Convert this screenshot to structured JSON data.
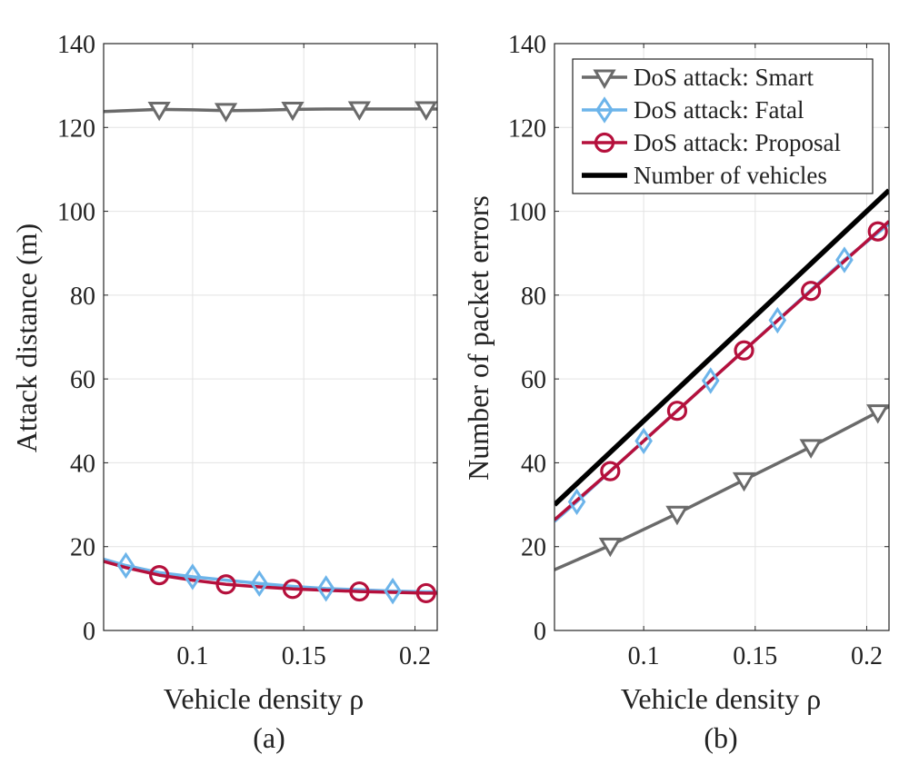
{
  "chart_data": [
    {
      "type": "line",
      "panel_label": "(a)",
      "xlabel": "Vehicle density ρ",
      "ylabel": "Attack distance (m)",
      "xlim": [
        0.06,
        0.21
      ],
      "ylim": [
        0,
        140
      ],
      "xticks": [
        "0.1",
        "0.15",
        "0.2"
      ],
      "xtick_values": [
        0.1,
        0.15,
        0.2
      ],
      "yticks": [
        "0",
        "20",
        "40",
        "60",
        "80",
        "100",
        "120",
        "140"
      ],
      "ytick_values": [
        0,
        20,
        40,
        60,
        80,
        100,
        120,
        140
      ],
      "grid": true,
      "series": [
        {
          "key": "smart",
          "color": "#6a6a6a",
          "marker": "triangle-down",
          "x": [
            0.06,
            0.085,
            0.1,
            0.115,
            0.13,
            0.145,
            0.16,
            0.175,
            0.19,
            0.21
          ],
          "y": [
            123.8,
            124.3,
            124.2,
            124.0,
            124.1,
            124.3,
            124.4,
            124.4,
            124.4,
            124.4
          ],
          "marker_x": [
            0.085,
            0.115,
            0.145,
            0.175,
            0.205
          ],
          "marker_y": [
            124.3,
            124.0,
            124.3,
            124.4,
            124.4
          ]
        },
        {
          "key": "fatal",
          "color": "#6cb4ea",
          "marker": "diamond",
          "x": [
            0.06,
            0.07,
            0.085,
            0.1,
            0.115,
            0.13,
            0.145,
            0.16,
            0.175,
            0.19,
            0.205,
            0.21
          ],
          "y": [
            17.0,
            15.5,
            13.8,
            12.8,
            12.0,
            11.2,
            10.5,
            10.0,
            9.7,
            9.4,
            9.2,
            9.2
          ],
          "marker_x": [
            0.07,
            0.1,
            0.13,
            0.16,
            0.19
          ],
          "marker_y": [
            15.5,
            12.8,
            11.2,
            10.0,
            9.4
          ]
        },
        {
          "key": "proposal",
          "color": "#b5103c",
          "marker": "circle",
          "x": [
            0.06,
            0.07,
            0.085,
            0.1,
            0.115,
            0.13,
            0.145,
            0.16,
            0.175,
            0.19,
            0.205,
            0.21
          ],
          "y": [
            16.5,
            15.0,
            13.2,
            12.0,
            11.0,
            10.4,
            9.9,
            9.6,
            9.3,
            9.1,
            8.9,
            8.9
          ],
          "marker_x": [
            0.085,
            0.115,
            0.145,
            0.175,
            0.205
          ],
          "marker_y": [
            13.2,
            11.0,
            9.9,
            9.3,
            8.9
          ]
        }
      ]
    },
    {
      "type": "line",
      "panel_label": "(b)",
      "xlabel": "Vehicle density ρ",
      "ylabel": "Number of packet errors",
      "xlim": [
        0.06,
        0.21
      ],
      "ylim": [
        0,
        140
      ],
      "xticks": [
        "0.1",
        "0.15",
        "0.2"
      ],
      "xtick_values": [
        0.1,
        0.15,
        0.2
      ],
      "yticks": [
        "0",
        "20",
        "40",
        "60",
        "80",
        "100",
        "120",
        "140"
      ],
      "ytick_values": [
        0,
        20,
        40,
        60,
        80,
        100,
        120,
        140
      ],
      "grid": true,
      "legend_position": "top-right",
      "series": [
        {
          "key": "smart",
          "name": "DoS attack: Smart",
          "color": "#6a6a6a",
          "marker": "triangle-down",
          "x": [
            0.06,
            0.085,
            0.115,
            0.145,
            0.175,
            0.205,
            0.21
          ],
          "y": [
            14.5,
            20.3,
            27.9,
            35.9,
            43.8,
            52.1,
            53.4
          ],
          "marker_x": [
            0.085,
            0.115,
            0.145,
            0.175,
            0.205
          ],
          "marker_y": [
            20.3,
            27.9,
            35.9,
            43.8,
            52.1
          ]
        },
        {
          "key": "fatal",
          "name": "DoS attack: Fatal",
          "color": "#6cb4ea",
          "marker": "diamond",
          "x": [
            0.06,
            0.07,
            0.1,
            0.13,
            0.16,
            0.19,
            0.21
          ],
          "y": [
            26.0,
            30.7,
            45.2,
            59.6,
            74.0,
            88.4,
            97.0
          ],
          "marker_x": [
            0.07,
            0.1,
            0.13,
            0.16,
            0.19
          ],
          "marker_y": [
            30.7,
            45.2,
            59.6,
            74.0,
            88.4
          ]
        },
        {
          "key": "proposal",
          "name": "DoS attack: Proposal",
          "color": "#b5103c",
          "marker": "circle",
          "x": [
            0.06,
            0.085,
            0.115,
            0.145,
            0.175,
            0.205,
            0.21
          ],
          "y": [
            26.4,
            38.0,
            52.4,
            66.8,
            81.0,
            95.2,
            97.6
          ],
          "marker_x": [
            0.085,
            0.115,
            0.145,
            0.175,
            0.205
          ],
          "marker_y": [
            38.0,
            52.4,
            66.8,
            81.0,
            95.2
          ]
        },
        {
          "key": "vehicles",
          "name": "Number of vehicles",
          "color": "#000000",
          "marker": "none",
          "x": [
            0.06,
            0.21
          ],
          "y": [
            30.0,
            105.0
          ],
          "marker_x": [],
          "marker_y": []
        }
      ]
    }
  ]
}
